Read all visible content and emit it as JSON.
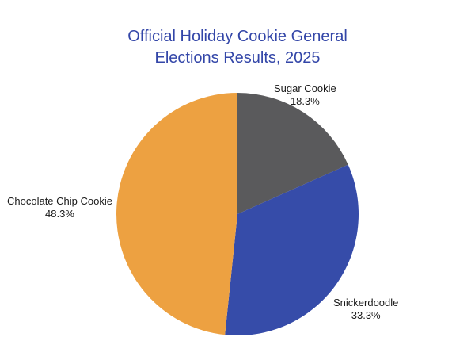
{
  "chart_data": {
    "type": "pie",
    "title": "Official Holiday Cookie General Elections Results, 2025",
    "title_lines": [
      "Official Holiday Cookie General",
      "Elections Results, 2025"
    ],
    "categories": [
      "Sugar Cookie",
      "Snickerdoodle",
      "Chocolate Chip Cookie"
    ],
    "values": [
      18.3,
      33.3,
      48.3
    ],
    "value_labels": [
      "18.3%",
      "33.3%",
      "48.3%"
    ],
    "colors": [
      "#5a5a5c",
      "#364ca9",
      "#eda141"
    ],
    "start_angle": "12 o'clock, clockwise",
    "legend": "none (labels outside slices)"
  },
  "labels": {
    "sugar": {
      "name": "Sugar Cookie",
      "pct": "18.3%"
    },
    "snicker": {
      "name": "Snickerdoodle",
      "pct": "33.3%"
    },
    "choc": {
      "name": "Chocolate Chip Cookie",
      "pct": "48.3%"
    }
  }
}
